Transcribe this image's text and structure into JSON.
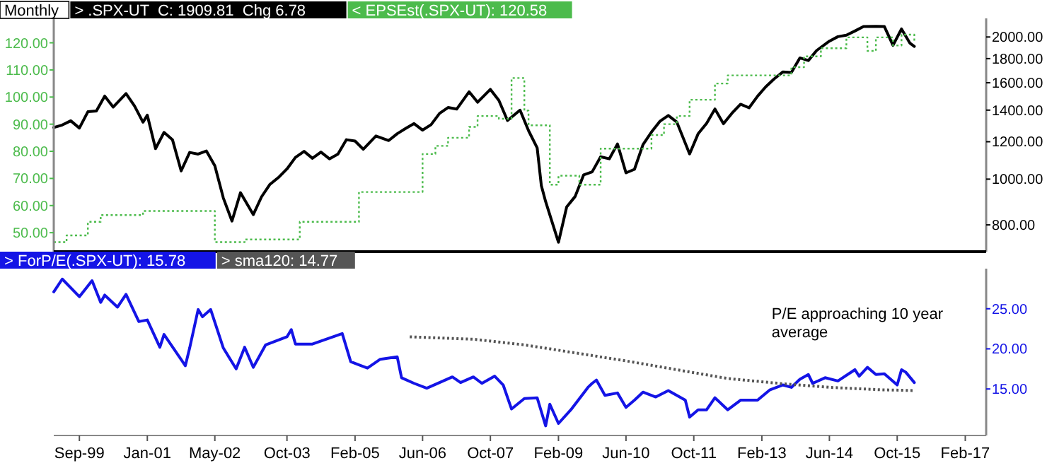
{
  "chart_data": [
    {
      "type": "line",
      "annotations": [
        "Monthly"
      ],
      "xlim": [
        "1999-03",
        "2017-07"
      ],
      "ylim": [
        43,
        129
      ],
      "yticks": [
        {
          "value": 50,
          "label": "50.00"
        },
        {
          "value": 60,
          "label": "60.00"
        },
        {
          "value": 70,
          "label": "70.00"
        },
        {
          "value": 80,
          "label": "80.00"
        },
        {
          "value": 90,
          "label": "90.00"
        },
        {
          "value": 100,
          "label": "100.00"
        },
        {
          "value": 110,
          "label": "110.00"
        },
        {
          "value": 120,
          "label": "120.00"
        }
      ],
      "y2lim": [
        702,
        2190
      ],
      "y2ticks": [
        {
          "value": 800,
          "label": "800.00"
        },
        {
          "value": 1000,
          "label": "1000.00"
        },
        {
          "value": 1200,
          "label": "1200.00"
        },
        {
          "value": 1400,
          "label": "1400.00"
        },
        {
          "value": 1600,
          "label": "1600.00"
        },
        {
          "value": 1800,
          "label": "1800.00"
        },
        {
          "value": 2000,
          "label": "2000.00"
        }
      ],
      "log": "y2",
      "tick_labels": "y",
      "legend": "top left",
      "marker": "none",
      "grid": false,
      "series": [
        {
          "name": "> .SPX-UT  C: 1909.81  Chg 6.78",
          "color": "#000000",
          "axis": "y2",
          "line_style": "solid",
          "x": [
            "1999-03",
            "1999-05",
            "1999-07",
            "1999-09",
            "1999-11",
            "2000-01",
            "2000-03",
            "2000-05",
            "2000-08",
            "2000-10",
            "2000-12",
            "2001-01",
            "2001-03",
            "2001-05",
            "2001-07",
            "2001-09",
            "2001-11",
            "2002-01",
            "2002-03",
            "2002-05",
            "2002-07",
            "2002-09",
            "2002-11",
            "2003-02",
            "2003-04",
            "2003-06",
            "2003-08",
            "2003-10",
            "2003-12",
            "2004-02",
            "2004-04",
            "2004-06",
            "2004-08",
            "2004-10",
            "2004-12",
            "2005-02",
            "2005-04",
            "2005-07",
            "2005-10",
            "2005-12",
            "2006-02",
            "2006-04",
            "2006-06",
            "2006-08",
            "2006-10",
            "2006-12",
            "2007-02",
            "2007-05",
            "2007-07",
            "2007-10",
            "2007-12",
            "2008-02",
            "2008-05",
            "2008-07",
            "2008-09",
            "2008-10",
            "2008-11",
            "2009-02",
            "2009-04",
            "2009-06",
            "2009-08",
            "2009-10",
            "2009-12",
            "2010-02",
            "2010-04",
            "2010-06",
            "2010-08",
            "2010-10",
            "2010-12",
            "2011-02",
            "2011-04",
            "2011-06",
            "2011-09",
            "2011-11",
            "2012-01",
            "2012-03",
            "2012-05",
            "2012-07",
            "2012-09",
            "2012-11",
            "2013-01",
            "2013-03",
            "2013-05",
            "2013-07",
            "2013-09",
            "2013-11",
            "2014-01",
            "2014-03",
            "2014-06",
            "2014-08",
            "2014-10",
            "2014-12",
            "2015-02",
            "2015-05",
            "2015-07",
            "2015-09",
            "2015-11",
            "2016-01",
            "2016-02"
          ],
          "values": [
            1286,
            1302,
            1329,
            1283,
            1389,
            1394,
            1499,
            1421,
            1518,
            1429,
            1320,
            1366,
            1160,
            1256,
            1211,
            1041,
            1139,
            1130,
            1147,
            1067,
            912,
            815,
            936,
            841,
            917,
            975,
            1008,
            1051,
            1112,
            1145,
            1107,
            1141,
            1104,
            1130,
            1212,
            1204,
            1157,
            1234,
            1207,
            1248,
            1281,
            1311,
            1270,
            1304,
            1378,
            1418,
            1407,
            1531,
            1455,
            1549,
            1468,
            1331,
            1400,
            1267,
            1165,
            969,
            896,
            735,
            873,
            919,
            1021,
            1036,
            1115,
            1104,
            1187,
            1031,
            1049,
            1183,
            1258,
            1327,
            1364,
            1321,
            1131,
            1247,
            1312,
            1408,
            1310,
            1379,
            1441,
            1416,
            1498,
            1569,
            1631,
            1686,
            1682,
            1806,
            1783,
            1872,
            1960,
            2003,
            2018,
            2059,
            2105,
            2107,
            2104,
            1920,
            2080,
            1940,
            1910
          ]
        },
        {
          "name": "< EPSEst(.SPX-UT): 120.58",
          "color": "#4cbb4c",
          "type": "step",
          "line_style": "dotted",
          "x": [
            "1999-03",
            "1999-06",
            "1999-11",
            "2000-02",
            "2000-12",
            "2002-05",
            "2002-12",
            "2004-01",
            "2005-03",
            "2006-06",
            "2006-09",
            "2006-12",
            "2007-05",
            "2007-07",
            "2007-12",
            "2008-03",
            "2008-06",
            "2008-07",
            "2008-12",
            "2009-02",
            "2009-07",
            "2009-12",
            "2010-12",
            "2011-03",
            "2011-06",
            "2011-09",
            "2012-03",
            "2012-06",
            "2013-09",
            "2013-12",
            "2014-04",
            "2014-10",
            "2015-03",
            "2015-05",
            "2015-09",
            "2015-11",
            "2016-02"
          ],
          "values": [
            46.5,
            49,
            54,
            56.5,
            58,
            46.5,
            47.5,
            54,
            65,
            79,
            82,
            85,
            89,
            93,
            92,
            107,
            95,
            89.6,
            67.7,
            71,
            67.7,
            81,
            86,
            90,
            93,
            99,
            105,
            108,
            111,
            115,
            118,
            122,
            117,
            122,
            119,
            123,
            120.6
          ]
        }
      ]
    },
    {
      "type": "line",
      "xlim": [
        "1999-03",
        "2017-07"
      ],
      "xticks": [
        {
          "value": "1999-09",
          "label": "Sep-99"
        },
        {
          "value": "2001-01",
          "label": "Jan-01"
        },
        {
          "value": "2002-05",
          "label": "May-02"
        },
        {
          "value": "2003-10",
          "label": "Oct-03"
        },
        {
          "value": "2005-02",
          "label": "Feb-05"
        },
        {
          "value": "2006-06",
          "label": "Jun-06"
        },
        {
          "value": "2007-10",
          "label": "Oct-07"
        },
        {
          "value": "2009-02",
          "label": "Feb-09"
        },
        {
          "value": "2010-06",
          "label": "Jun-10"
        },
        {
          "value": "2011-10",
          "label": "Oct-11"
        },
        {
          "value": "2013-02",
          "label": "Feb-13"
        },
        {
          "value": "2014-06",
          "label": "Jun-14"
        },
        {
          "value": "2015-10",
          "label": "Oct-15"
        },
        {
          "value": "2017-02",
          "label": "Feb-17"
        }
      ],
      "y2lim": [
        9.2,
        30
      ],
      "y2ticks": [
        {
          "value": 15,
          "label": "15.00"
        },
        {
          "value": 20,
          "label": "20.00"
        },
        {
          "value": 25,
          "label": "25.00"
        }
      ],
      "legend": "top left",
      "marker": "none",
      "grid": false,
      "annotations": [
        "P/E approaching 10 year average"
      ],
      "series": [
        {
          "name": "> ForP/E(.SPX-UT): 15.78",
          "color": "#1414e6",
          "axis": "y2",
          "line_style": "solid",
          "x": [
            "1999-03",
            "1999-05",
            "1999-09",
            "1999-12",
            "2000-02",
            "2000-03",
            "2000-06",
            "2000-08",
            "2000-11",
            "2001-01",
            "2001-04",
            "2001-05",
            "2001-10",
            "2001-11",
            "2002-01",
            "2002-02",
            "2002-04",
            "2002-07",
            "2002-10",
            "2002-12",
            "2003-02",
            "2003-05",
            "2003-10",
            "2003-11",
            "2003-12",
            "2004-04",
            "2004-11",
            "2005-01",
            "2005-05",
            "2005-08",
            "2005-12",
            "2006-01",
            "2006-04",
            "2006-07",
            "2007-01",
            "2007-03",
            "2007-06",
            "2007-08",
            "2007-11",
            "2008-01",
            "2008-03",
            "2008-06",
            "2008-09",
            "2008-11",
            "2008-12",
            "2009-02",
            "2009-05",
            "2009-09",
            "2009-10",
            "2009-11",
            "2010-01",
            "2010-04",
            "2010-06",
            "2010-08",
            "2010-10",
            "2011-01",
            "2011-04",
            "2011-08",
            "2011-09",
            "2011-11",
            "2012-01",
            "2012-03",
            "2012-06",
            "2012-09",
            "2013-01",
            "2013-04",
            "2013-07",
            "2013-09",
            "2013-11",
            "2014-01",
            "2014-02",
            "2014-05",
            "2014-08",
            "2014-12",
            "2015-01",
            "2015-03",
            "2015-05",
            "2015-07",
            "2015-10",
            "2015-11",
            "2015-12",
            "2016-02"
          ],
          "values": [
            27.1,
            28.7,
            26.5,
            28.5,
            25.8,
            26.7,
            25.2,
            26.8,
            23.4,
            23.6,
            20.2,
            21.8,
            17.9,
            20.1,
            24.9,
            24,
            24.9,
            20.1,
            17.5,
            20.2,
            17.7,
            20.5,
            21.5,
            22.4,
            20.6,
            20.6,
            21.9,
            18.4,
            17.6,
            18.7,
            19,
            16.4,
            15.7,
            15.1,
            16.5,
            15.8,
            16.5,
            15.7,
            16.6,
            15.5,
            12.5,
            13.8,
            13.9,
            10.4,
            13.1,
            10.7,
            12.4,
            15.2,
            15.7,
            16.1,
            14.2,
            14.5,
            12.7,
            13.6,
            14.6,
            14,
            14.8,
            13.6,
            11.5,
            12.4,
            12.4,
            13.9,
            12.4,
            13.6,
            13.6,
            14.9,
            15.5,
            15.2,
            16.2,
            16.8,
            15.7,
            16.4,
            16,
            17.4,
            16.6,
            17.7,
            16.8,
            16.9,
            15.5,
            17.4,
            17.1,
            15.8
          ]
        },
        {
          "name": "> sma120: 14.77",
          "color": "#555555",
          "axis": "y2",
          "line_style": "dotted",
          "x": [
            "2006-03",
            "2007-06",
            "2008-06",
            "2009-06",
            "2010-06",
            "2011-06",
            "2012-06",
            "2013-06",
            "2014-06",
            "2015-06",
            "2016-02"
          ],
          "values": [
            21.5,
            21.2,
            20.5,
            19.5,
            18.5,
            17.4,
            16.3,
            15.7,
            15.2,
            14.9,
            14.8
          ]
        }
      ]
    }
  ]
}
